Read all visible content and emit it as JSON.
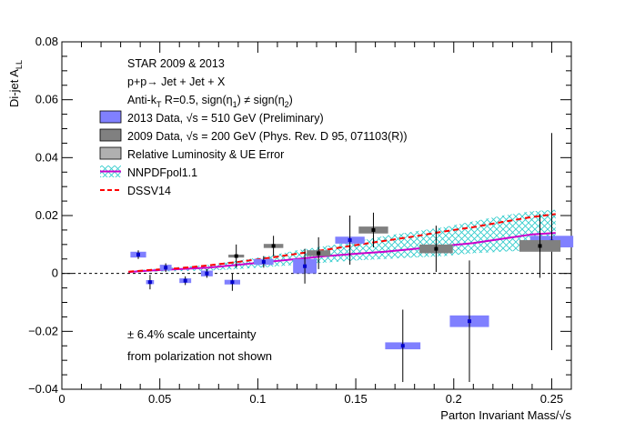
{
  "chart_data": {
    "type": "scatter",
    "title": "",
    "xlabel": "Parton Invariant Mass/√s",
    "ylabel": "Di-jet A_LL",
    "xlim": [
      0,
      0.26
    ],
    "ylim": [
      -0.04,
      0.08
    ],
    "x_ticks": [
      0,
      0.05,
      0.1,
      0.15,
      0.2,
      0.25
    ],
    "x_tick_labels": [
      "0",
      "0.05",
      "0.1",
      "0.15",
      "0.2",
      "0.25"
    ],
    "y_ticks": [
      -0.04,
      -0.02,
      0,
      0.02,
      0.04,
      0.06,
      0.08
    ],
    "y_tick_labels": [
      "−0.04",
      "−0.02",
      "0",
      "0.02",
      "0.04",
      "0.06",
      "0.08"
    ],
    "grid": false,
    "zero_line": true,
    "header_lines": [
      "STAR 2009 & 2013",
      "p+p→ Jet + Jet + X",
      "Anti-k_T R=0.5, sign(η_1) ≠ sign(η_2)"
    ],
    "legend": [
      {
        "label": "2013 Data, √s = 510 GeV (Preliminary)",
        "style": "box",
        "color": "#8080ff"
      },
      {
        "label": "2009 Data, √s = 200 GeV (Phys. Rev. D 95, 071103(R))",
        "style": "box",
        "color": "#808080"
      },
      {
        "label": "Relative Luminosity & UE Error",
        "style": "box",
        "color": "#b0b0b0"
      },
      {
        "label": "NNPDFpol1.1",
        "style": "hatch-line",
        "color": "#cc00cc",
        "hatch_color": "#33cccc"
      },
      {
        "label": "DSSV14",
        "style": "dashed-line",
        "color": "#ff0000"
      }
    ],
    "annotations": [
      "± 6.4% scale uncertainty",
      "from polarization not shown"
    ],
    "series": [
      {
        "name": "2013 Data, √s = 510 GeV (Preliminary)",
        "color": "#0000cc",
        "syst_color": "#8080ff",
        "points": [
          {
            "x": 0.039,
            "y": 0.0065,
            "err": 0.0015,
            "syst_dx": 0.004,
            "syst_dy": 0.001
          },
          {
            "x": 0.045,
            "y": -0.003,
            "err": 0.0025,
            "syst_dx": 0.002,
            "syst_dy": 0.0007
          },
          {
            "x": 0.053,
            "y": 0.002,
            "err": 0.0015,
            "syst_dx": 0.003,
            "syst_dy": 0.001
          },
          {
            "x": 0.063,
            "y": -0.0025,
            "err": 0.0015,
            "syst_dx": 0.003,
            "syst_dy": 0.0008
          },
          {
            "x": 0.074,
            "y": 0.0,
            "err": 0.0015,
            "syst_dx": 0.003,
            "syst_dy": 0.001
          },
          {
            "x": 0.087,
            "y": -0.003,
            "err": 0.003,
            "syst_dx": 0.004,
            "syst_dy": 0.0008
          },
          {
            "x": 0.103,
            "y": 0.004,
            "err": 0.002,
            "syst_dx": 0.005,
            "syst_dy": 0.001
          },
          {
            "x": 0.124,
            "y": 0.0025,
            "err": 0.006,
            "syst_dx": 0.006,
            "syst_dy": 0.0025
          },
          {
            "x": 0.147,
            "y": 0.0115,
            "err": 0.0085,
            "syst_dx": 0.0075,
            "syst_dy": 0.0012
          },
          {
            "x": 0.174,
            "y": -0.025,
            "err": 0.0125,
            "syst_dx": 0.009,
            "syst_dy": 0.0012
          },
          {
            "x": 0.208,
            "y": -0.0165,
            "err": 0.021,
            "syst_dx": 0.01,
            "syst_dy": 0.002
          },
          {
            "x": 0.25,
            "y": 0.011,
            "err": 0.0375,
            "syst_dx": 0.011,
            "syst_dy": 0.002
          }
        ]
      },
      {
        "name": "2009 Data, √s = 200 GeV (Phys. Rev. D 95, 071103(R))",
        "color": "#000000",
        "syst_color": "#808080",
        "points": [
          {
            "x": 0.089,
            "y": 0.006,
            "err": 0.004,
            "syst_dx": 0.004,
            "syst_dy": 0.0005
          },
          {
            "x": 0.108,
            "y": 0.0095,
            "err": 0.0035,
            "syst_dx": 0.005,
            "syst_dy": 0.0007
          },
          {
            "x": 0.131,
            "y": 0.007,
            "err": 0.0055,
            "syst_dx": 0.006,
            "syst_dy": 0.001
          },
          {
            "x": 0.159,
            "y": 0.015,
            "err": 0.006,
            "syst_dx": 0.0075,
            "syst_dy": 0.0012
          },
          {
            "x": 0.191,
            "y": 0.0085,
            "err": 0.008,
            "syst_dx": 0.0085,
            "syst_dy": 0.0015
          },
          {
            "x": 0.244,
            "y": 0.0095,
            "err": 0.011,
            "syst_dx": 0.0105,
            "syst_dy": 0.002
          }
        ]
      }
    ],
    "nnpdf": {
      "name": "NNPDFpol1.1",
      "color": "#cc00cc",
      "hatch_color": "#33cccc",
      "x": [
        0.034,
        0.045,
        0.06,
        0.075,
        0.09,
        0.105,
        0.12,
        0.135,
        0.15,
        0.165,
        0.18,
        0.195,
        0.21,
        0.225,
        0.24,
        0.252
      ],
      "y": [
        0.0005,
        0.001,
        0.0015,
        0.002,
        0.003,
        0.004,
        0.005,
        0.006,
        0.0068,
        0.0075,
        0.0085,
        0.0095,
        0.0105,
        0.012,
        0.0135,
        0.014
      ],
      "lo": [
        0.0003,
        0.0006,
        0.0008,
        0.001,
        0.0015,
        0.0022,
        0.003,
        0.0038,
        0.0045,
        0.005,
        0.0055,
        0.006,
        0.007,
        0.0075,
        0.008,
        0.008
      ],
      "hi": [
        0.0008,
        0.0015,
        0.0022,
        0.003,
        0.0045,
        0.006,
        0.008,
        0.0095,
        0.011,
        0.013,
        0.0145,
        0.016,
        0.018,
        0.02,
        0.0215,
        0.022
      ]
    },
    "dssv": {
      "name": "DSSV14",
      "color": "#ff0000",
      "x": [
        0.034,
        0.045,
        0.06,
        0.075,
        0.09,
        0.105,
        0.12,
        0.135,
        0.15,
        0.165,
        0.18,
        0.195,
        0.21,
        0.225,
        0.24,
        0.252
      ],
      "y": [
        0.0006,
        0.0012,
        0.0018,
        0.0028,
        0.004,
        0.0053,
        0.0068,
        0.0082,
        0.0098,
        0.0113,
        0.0128,
        0.0145,
        0.016,
        0.0178,
        0.0195,
        0.0205
      ]
    }
  }
}
